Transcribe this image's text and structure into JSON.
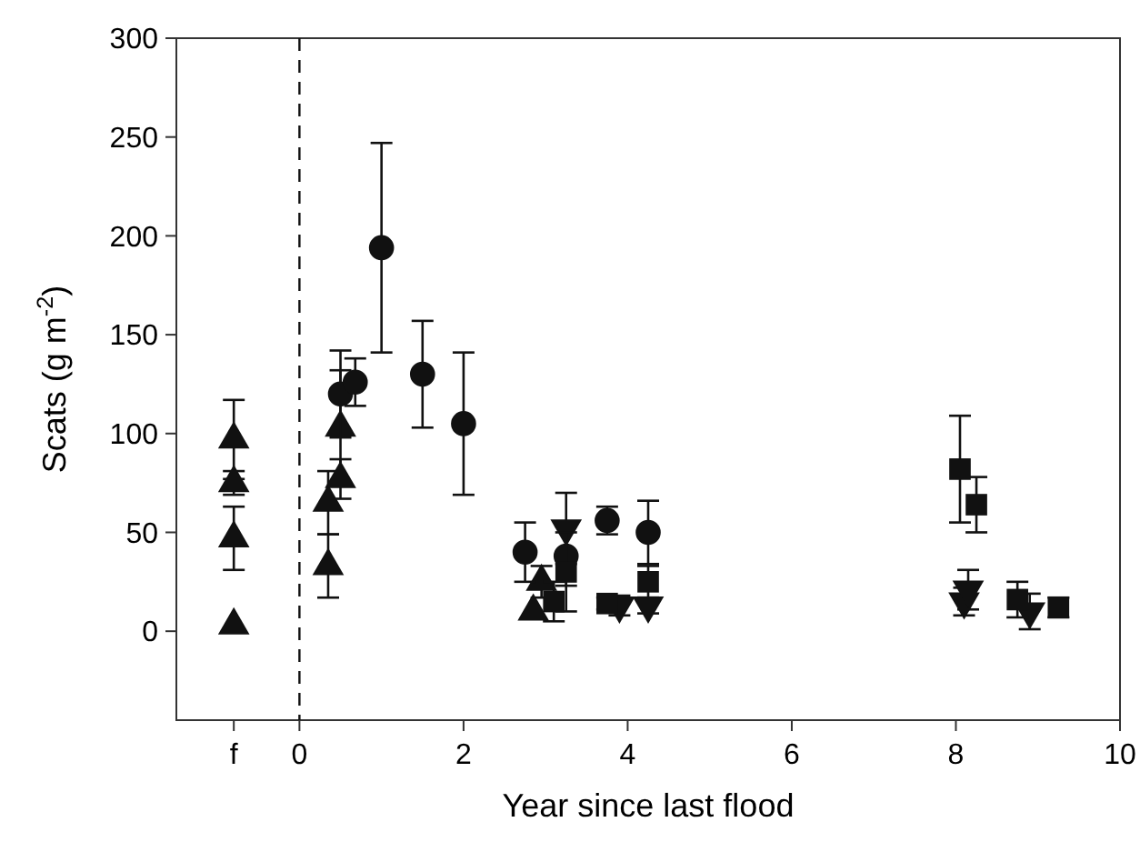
{
  "chart_data": {
    "type": "scatter",
    "xlabel": "Year since last flood",
    "ylabel": "Scats (g m$^{-2}$)",
    "xlim": [
      -1.5,
      10
    ],
    "xticks": [
      {
        "value": -0.8,
        "label": "f"
      },
      0,
      2,
      4,
      6,
      8,
      10
    ],
    "ylim": [
      -45,
      300
    ],
    "yticks": [
      0,
      50,
      100,
      150,
      200,
      250,
      300
    ],
    "grid": false,
    "ref_lines": [
      {
        "axis": "x",
        "value": 0,
        "label": null,
        "color": "#111111",
        "line_style": "dashed"
      }
    ],
    "series": [
      {
        "color": "#111111",
        "marker": "triangle",
        "x": [
          -0.8,
          -0.8,
          -0.8,
          -0.8,
          0.35,
          0.35,
          0.5,
          0.5,
          2.85,
          2.95
        ],
        "values": [
          97,
          75,
          47,
          3,
          65,
          33,
          103,
          77,
          10,
          25
        ],
        "errors": [
          20,
          6,
          16,
          null,
          16,
          16,
          29,
          10,
          null,
          8
        ]
      },
      {
        "color": "#111111",
        "marker": "circle",
        "x": [
          0.5,
          0.68,
          1.0,
          1.5,
          2.0,
          2.75,
          3.25,
          3.75,
          4.25
        ],
        "values": [
          120,
          126,
          194,
          130,
          105,
          40,
          38,
          56,
          50
        ],
        "errors": [
          22,
          12,
          53,
          27,
          36,
          15,
          15,
          7,
          16
        ]
      },
      {
        "color": "#111111",
        "marker": "triangle-down",
        "x": [
          3.25,
          3.9,
          4.25,
          8.1,
          8.15,
          8.9
        ],
        "values": [
          52,
          13,
          13,
          15,
          21,
          10
        ],
        "errors": [
          18,
          5,
          4,
          7,
          10,
          9
        ]
      },
      {
        "color": "#111111",
        "marker": "square",
        "x": [
          3.1,
          3.25,
          3.75,
          4.25,
          8.05,
          8.25,
          8.75,
          9.25
        ],
        "values": [
          15,
          30,
          14,
          25,
          82,
          64,
          16,
          12
        ],
        "errors": [
          10,
          20,
          3,
          8,
          27,
          14,
          9,
          5
        ]
      }
    ]
  }
}
